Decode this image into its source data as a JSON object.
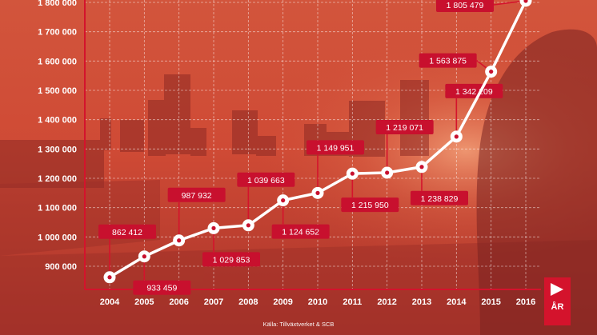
{
  "chart_data": {
    "type": "line",
    "x": [
      "2004",
      "2005",
      "2006",
      "2007",
      "2008",
      "2009",
      "2010",
      "2011",
      "2012",
      "2013",
      "2014",
      "2015",
      "2016"
    ],
    "series": [
      {
        "values": [
          862412,
          933459,
          987932,
          1029853,
          1039663,
          1124652,
          1149951,
          1215950,
          1219071,
          1238829,
          1342209,
          1563875,
          1805479
        ]
      }
    ],
    "data_labels": [
      "862 412",
      "933 459",
      "987 932",
      "1 029 853",
      "1 039 663",
      "1 124 652",
      "1 149 951",
      "1 215 950",
      "1 219 071",
      "1 238 829",
      "1 342 209",
      "1 563 875",
      "1 805 479"
    ],
    "label_side": [
      "above",
      "below",
      "above",
      "below",
      "above",
      "below",
      "above",
      "below",
      "above",
      "below",
      "above",
      "above",
      "above"
    ],
    "yticks": [
      900000,
      1000000,
      1100000,
      1200000,
      1300000,
      1400000,
      1500000,
      1600000,
      1700000,
      1800000
    ],
    "ytick_labels": [
      "900 000",
      "1 000 000",
      "1 100 000",
      "1 200 000",
      "1 300 000",
      "1 400 000",
      "1 500 000",
      "1 600 000",
      "1 700 000",
      "1 800 000"
    ],
    "ylim": [
      860000,
      1810000
    ],
    "xlabel": "ÅR",
    "ylabel": "",
    "title": "",
    "grid": true,
    "source": "Källa: Tillväxtverket & SCB"
  },
  "colors": {
    "background": "#c9422f",
    "line": "#ffffff",
    "label_box": "#c8102e",
    "axis": "#d4132c",
    "grid": "#ffffff"
  }
}
